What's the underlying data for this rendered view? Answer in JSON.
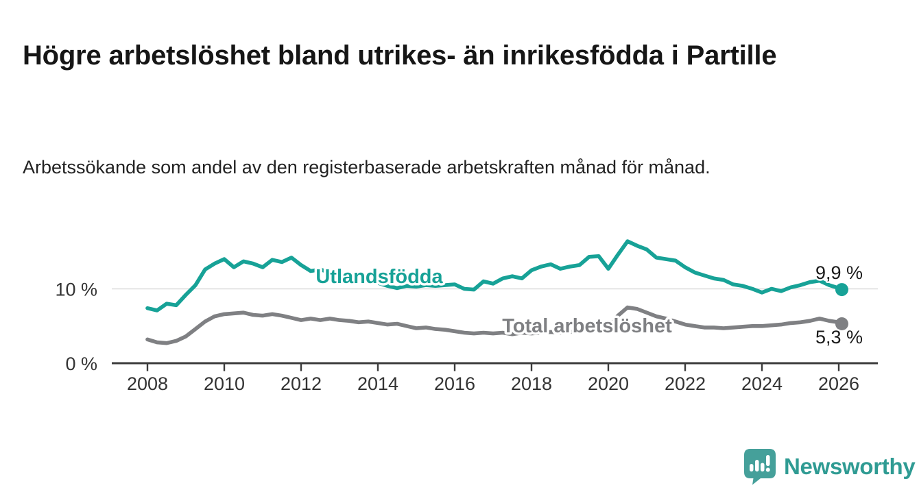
{
  "header": {
    "title": "Högre arbetslöshet bland utrikes- än inrikesfödda i Partille",
    "subtitle": "Arbetssökande som andel av den registerbaserade arbetskraften månad för månad."
  },
  "chart_data": {
    "type": "line",
    "title": "",
    "xlabel": "",
    "ylabel": "",
    "grid": "single horizontal gridline at 10 %",
    "legend_position": "inline labels on the lines",
    "xlim": [
      2007.1,
      2027.0
    ],
    "ylim": [
      0,
      18.5
    ],
    "x_ticks": [
      2008,
      2010,
      2012,
      2014,
      2016,
      2018,
      2020,
      2022,
      2024,
      2026
    ],
    "y_ticks": [
      {
        "value": 0,
        "label": "0 %"
      },
      {
        "value": 10,
        "label": "10 %"
      }
    ],
    "x": [
      2008.0,
      2008.25,
      2008.5,
      2008.75,
      2009.0,
      2009.25,
      2009.5,
      2009.75,
      2010.0,
      2010.25,
      2010.5,
      2010.75,
      2011.0,
      2011.25,
      2011.5,
      2011.75,
      2012.0,
      2012.25,
      2012.5,
      2012.75,
      2013.0,
      2013.25,
      2013.5,
      2013.75,
      2014.0,
      2014.25,
      2014.5,
      2014.75,
      2015.0,
      2015.25,
      2015.5,
      2015.75,
      2016.0,
      2016.25,
      2016.5,
      2016.75,
      2017.0,
      2017.25,
      2017.5,
      2017.75,
      2018.0,
      2018.25,
      2018.5,
      2018.75,
      2019.0,
      2019.25,
      2019.5,
      2019.75,
      2020.0,
      2020.25,
      2020.5,
      2020.75,
      2021.0,
      2021.25,
      2021.5,
      2021.75,
      2022.0,
      2022.25,
      2022.5,
      2022.75,
      2023.0,
      2023.25,
      2023.5,
      2023.75,
      2024.0,
      2024.25,
      2024.5,
      2024.75,
      2025.0,
      2025.25,
      2025.5,
      2025.75,
      2026.0,
      2026.08
    ],
    "series": [
      {
        "name": "Utlandsfödda",
        "color": "#17A297",
        "end_label": "9,9 %",
        "end_value": 9.9,
        "values": [
          7.4,
          7.1,
          8.0,
          7.8,
          9.2,
          10.5,
          12.6,
          13.4,
          14.0,
          12.9,
          13.7,
          13.4,
          12.9,
          13.9,
          13.6,
          14.2,
          13.2,
          12.4,
          12.6,
          12.2,
          11.8,
          11.5,
          11.3,
          11.0,
          10.8,
          10.4,
          10.1,
          10.4,
          10.3,
          10.5,
          10.4,
          10.5,
          10.6,
          10.0,
          9.9,
          11.0,
          10.7,
          11.4,
          11.7,
          11.4,
          12.5,
          13.0,
          13.3,
          12.7,
          13.0,
          13.2,
          14.3,
          14.4,
          12.7,
          14.6,
          16.4,
          15.8,
          15.3,
          14.2,
          14.0,
          13.8,
          12.9,
          12.2,
          11.8,
          11.4,
          11.2,
          10.6,
          10.4,
          10.0,
          9.5,
          10.0,
          9.7,
          10.2,
          10.5,
          10.9,
          11.1,
          10.5,
          10.1,
          9.9
        ]
      },
      {
        "name": "Total arbetslöshet",
        "color": "#7F8083",
        "end_label": "5,3 %",
        "end_value": 5.3,
        "values": [
          3.2,
          2.8,
          2.7,
          3.0,
          3.6,
          4.6,
          5.6,
          6.3,
          6.6,
          6.7,
          6.8,
          6.5,
          6.4,
          6.6,
          6.4,
          6.1,
          5.8,
          6.0,
          5.8,
          6.0,
          5.8,
          5.7,
          5.5,
          5.6,
          5.4,
          5.2,
          5.3,
          5.0,
          4.7,
          4.8,
          4.6,
          4.5,
          4.3,
          4.1,
          4.0,
          4.1,
          4.0,
          4.1,
          3.9,
          4.1,
          4.0,
          4.1,
          4.2,
          4.1,
          4.2,
          4.3,
          4.5,
          4.6,
          4.7,
          6.4,
          7.5,
          7.3,
          6.8,
          6.3,
          6.0,
          5.6,
          5.2,
          5.0,
          4.8,
          4.8,
          4.7,
          4.8,
          4.9,
          5.0,
          5.0,
          5.1,
          5.2,
          5.4,
          5.5,
          5.7,
          6.0,
          5.7,
          5.5,
          5.3
        ]
      }
    ]
  },
  "footer": {
    "brand": "Newsworthy",
    "brand_text_color": "#2F9B93",
    "icon": "speech-bubble-with-bar-chart-and-exclamation",
    "icon_color": "#45A09A"
  },
  "colors": {
    "background": "#FFFFFF",
    "title_text": "#161616",
    "axis_line": "#3B3B3B",
    "tick_label": "#333333",
    "gridline": "#DCDCDC",
    "value_label": "#1A1A1A"
  }
}
